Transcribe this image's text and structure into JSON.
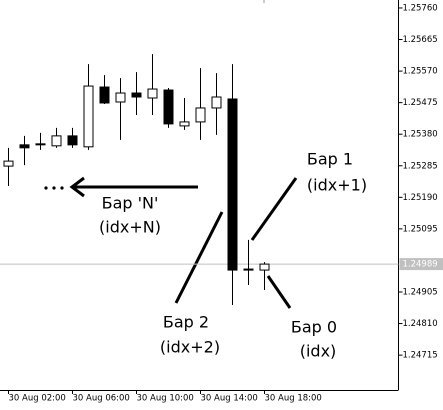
{
  "chart_data": {
    "type": "candlestick",
    "categories": [
      "30 Aug 02:00",
      null,
      null,
      null,
      "30 Aug 06:00",
      null,
      null,
      null,
      "30 Aug 10:00",
      null,
      null,
      null,
      "30 Aug 14:00",
      null,
      null,
      null,
      "30 Aug 18:00"
    ],
    "open": [
      1.25284,
      1.25348,
      1.25348,
      1.25345,
      1.25375,
      1.25342,
      1.25522,
      1.25477,
      1.25504,
      1.25489,
      1.25513,
      1.25405,
      1.25417,
      1.25459,
      1.25486,
      1.24974,
      1.24971
    ],
    "high": [
      1.25339,
      1.25375,
      1.25384,
      1.25399,
      1.25399,
      1.25591,
      1.25558,
      1.25549,
      1.25567,
      1.25621,
      1.25519,
      1.25489,
      1.25579,
      1.25564,
      1.25591,
      1.25062,
      1.24995
    ],
    "low": [
      1.25224,
      1.25287,
      1.25333,
      1.25339,
      1.25339,
      1.25333,
      1.25471,
      1.25363,
      1.25438,
      1.25438,
      1.25399,
      1.25393,
      1.25363,
      1.25378,
      1.24866,
      1.24926,
      1.24911
    ],
    "close": [
      1.25299,
      1.25339,
      1.25351,
      1.25375,
      1.25348,
      1.25525,
      1.25474,
      1.25504,
      1.25492,
      1.25516,
      1.25411,
      1.25417,
      1.25459,
      1.25492,
      1.24971,
      1.24971,
      1.24989
    ],
    "up_color": "#ffffff",
    "down_color": "#000000",
    "ylim": [
      1.2461,
      1.25784
    ],
    "yticks": [
      {
        "value": 1.2576,
        "label": "1.25760"
      },
      1.25665,
      {
        "value": 1.2557,
        "label": "1.25570"
      },
      1.25475,
      {
        "value": 1.2538,
        "label": "1.25380"
      },
      1.25285,
      {
        "value": 1.2519,
        "label": "1.25190"
      },
      1.25095,
      1.24905,
      {
        "value": 1.2481,
        "label": "1.24810"
      },
      1.24715
    ],
    "current_price": 1.24989,
    "annotations": [
      "Бар 1",
      "(idx+1)",
      "Бар 'N'",
      "(idx+N)",
      "Бар 2",
      "(idx+2)",
      "Бар 0",
      "(idx)"
    ]
  }
}
